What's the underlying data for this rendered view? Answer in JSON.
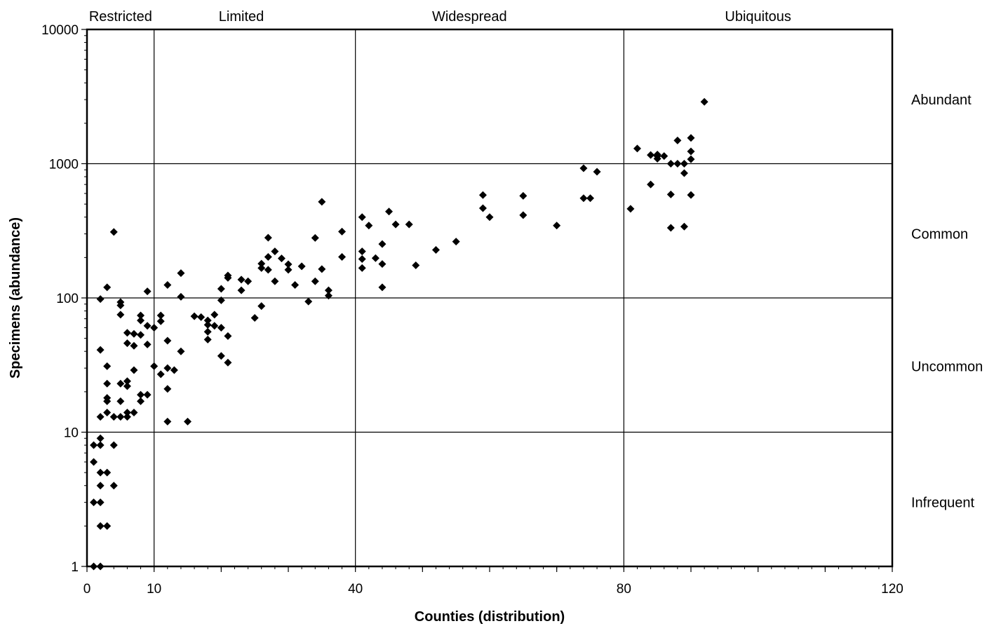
{
  "chart_data": {
    "type": "scatter",
    "xlabel": "Counties (distribution)",
    "ylabel": "Specimens (abundance)",
    "xlim": [
      0,
      120
    ],
    "ylim": [
      1,
      10000
    ],
    "y_scale": "log",
    "grid": true,
    "x_ticks": [
      0,
      10,
      40,
      80,
      120
    ],
    "x_tick_labels": [
      "0",
      "10",
      "40",
      "80",
      "120"
    ],
    "y_ticks": [
      1,
      10,
      100,
      1000,
      10000
    ],
    "y_tick_labels": [
      "1",
      "10",
      "100",
      "1000",
      "10000"
    ],
    "x_dividers": [
      10,
      40,
      80
    ],
    "distribution_zones": [
      {
        "label": "Restricted",
        "x_center": 5
      },
      {
        "label": "Limited",
        "x_center": 23
      },
      {
        "label": "Widespread",
        "x_center": 57
      },
      {
        "label": "Ubiquitous",
        "x_center": 100
      }
    ],
    "abundance_zones": [
      {
        "label": "Abundant",
        "y_center": 3000
      },
      {
        "label": "Common",
        "y_center": 300
      },
      {
        "label": "Uncommon",
        "y_center": 31
      },
      {
        "label": "Infrequent",
        "y_center": 3
      }
    ],
    "marker_color": "#000000",
    "series": [
      {
        "points": [
          [
            1,
            1
          ],
          [
            2,
            1
          ],
          [
            1,
            3
          ],
          [
            2,
            3
          ],
          [
            1,
            6
          ],
          [
            1,
            8
          ],
          [
            2,
            8
          ],
          [
            2,
            9
          ],
          [
            2,
            5
          ],
          [
            3,
            5
          ],
          [
            2,
            4
          ],
          [
            4,
            4
          ],
          [
            4,
            8
          ],
          [
            2,
            2
          ],
          [
            3,
            2
          ],
          [
            2,
            13
          ],
          [
            2,
            41
          ],
          [
            2,
            98
          ],
          [
            3,
            120
          ],
          [
            3,
            31
          ],
          [
            3,
            23
          ],
          [
            3,
            18
          ],
          [
            3,
            17
          ],
          [
            3,
            14
          ],
          [
            4,
            13
          ],
          [
            4,
            310
          ],
          [
            5,
            13
          ],
          [
            5,
            17
          ],
          [
            5,
            23
          ],
          [
            5,
            75
          ],
          [
            5,
            88
          ],
          [
            5,
            93
          ],
          [
            6,
            13
          ],
          [
            6,
            14
          ],
          [
            6,
            22
          ],
          [
            6,
            24
          ],
          [
            6,
            46
          ],
          [
            6,
            55
          ],
          [
            7,
            14
          ],
          [
            7,
            29
          ],
          [
            7,
            44
          ],
          [
            7,
            54
          ],
          [
            8,
            17
          ],
          [
            8,
            19
          ],
          [
            8,
            53
          ],
          [
            8,
            68
          ],
          [
            8,
            74
          ],
          [
            9,
            19
          ],
          [
            9,
            45
          ],
          [
            9,
            62
          ],
          [
            9,
            112
          ],
          [
            10,
            31
          ],
          [
            10,
            60
          ],
          [
            11,
            27
          ],
          [
            11,
            67
          ],
          [
            11,
            74
          ],
          [
            12,
            12
          ],
          [
            12,
            21
          ],
          [
            12,
            30
          ],
          [
            12,
            48
          ],
          [
            12,
            125
          ],
          [
            13,
            29
          ],
          [
            14,
            40
          ],
          [
            14,
            102
          ],
          [
            14,
            153
          ],
          [
            15,
            12
          ],
          [
            16,
            73
          ],
          [
            17,
            72
          ],
          [
            18,
            49
          ],
          [
            18,
            56
          ],
          [
            18,
            63
          ],
          [
            18,
            68
          ],
          [
            19,
            62
          ],
          [
            19,
            75
          ],
          [
            20,
            37
          ],
          [
            20,
            60
          ],
          [
            20,
            96
          ],
          [
            20,
            117
          ],
          [
            21,
            33
          ],
          [
            21,
            52
          ],
          [
            21,
            141
          ],
          [
            21,
            147
          ],
          [
            23,
            114
          ],
          [
            23,
            137
          ],
          [
            24,
            133
          ],
          [
            25,
            71
          ],
          [
            26,
            87
          ],
          [
            26,
            167
          ],
          [
            26,
            180
          ],
          [
            27,
            162
          ],
          [
            27,
            202
          ],
          [
            27,
            281
          ],
          [
            28,
            133
          ],
          [
            28,
            222
          ],
          [
            29,
            197
          ],
          [
            30,
            162
          ],
          [
            30,
            178
          ],
          [
            31,
            125
          ],
          [
            32,
            172
          ],
          [
            33,
            94
          ],
          [
            34,
            133
          ],
          [
            34,
            280
          ],
          [
            35,
            164
          ],
          [
            35,
            520
          ],
          [
            36,
            104
          ],
          [
            36,
            114
          ],
          [
            38,
            202
          ],
          [
            38,
            312
          ],
          [
            41,
            167
          ],
          [
            41,
            195
          ],
          [
            41,
            222
          ],
          [
            41,
            400
          ],
          [
            42,
            346
          ],
          [
            43,
            198
          ],
          [
            44,
            120
          ],
          [
            44,
            179
          ],
          [
            44,
            252
          ],
          [
            45,
            440
          ],
          [
            46,
            353
          ],
          [
            48,
            353
          ],
          [
            49,
            175
          ],
          [
            52,
            228
          ],
          [
            55,
            263
          ],
          [
            59,
            466
          ],
          [
            59,
            584
          ],
          [
            60,
            400
          ],
          [
            65,
            414
          ],
          [
            65,
            576
          ],
          [
            70,
            346
          ],
          [
            74,
            553
          ],
          [
            74,
            925
          ],
          [
            75,
            553
          ],
          [
            76,
            871
          ],
          [
            81,
            461
          ],
          [
            82,
            1297
          ],
          [
            84,
            1160
          ],
          [
            84,
            700
          ],
          [
            85,
            1170
          ],
          [
            85,
            1090
          ],
          [
            85,
            1140
          ],
          [
            86,
            1140
          ],
          [
            87,
            1000
          ],
          [
            87,
            590
          ],
          [
            87,
            333
          ],
          [
            88,
            1490
          ],
          [
            88,
            1000
          ],
          [
            89,
            1000
          ],
          [
            89,
            850
          ],
          [
            89,
            340
          ],
          [
            90,
            1555
          ],
          [
            90,
            1235
          ],
          [
            90,
            1080
          ],
          [
            90,
            585
          ],
          [
            92,
            2890
          ]
        ]
      }
    ]
  }
}
